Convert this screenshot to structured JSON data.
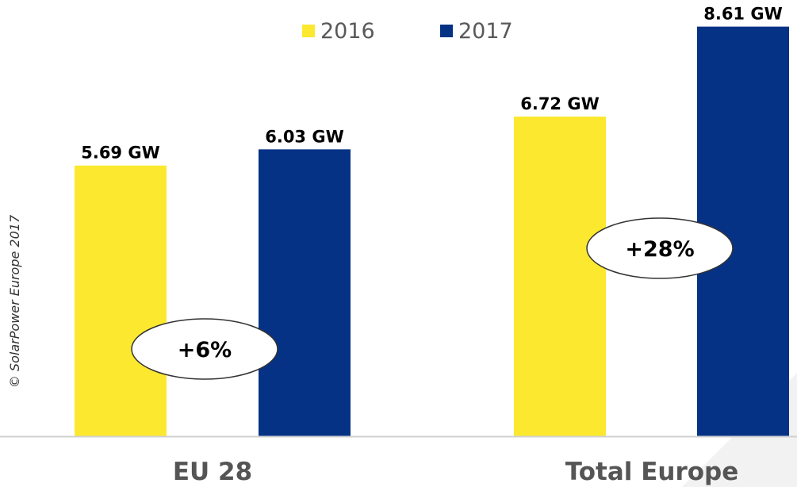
{
  "chart_data": {
    "type": "bar",
    "title": "",
    "xlabel": "",
    "ylabel": "",
    "categories": [
      "EU 28",
      "Total Europe"
    ],
    "series": [
      {
        "name": "2016",
        "color": "#FCE92F",
        "values": [
          5.69,
          6.72
        ],
        "labels": [
          "5.69 GW",
          "6.72 GW"
        ]
      },
      {
        "name": "2017",
        "color": "#063286",
        "values": [
          6.03,
          8.61
        ],
        "labels": [
          "6.03 GW",
          "8.61 GW"
        ]
      }
    ],
    "growth_annotations": [
      "+6%",
      "+28%"
    ],
    "ylim": [
      0,
      9.17
    ],
    "grid": false,
    "legend_position": "top-center",
    "copyright": "© SolarPower Europe 2017"
  }
}
